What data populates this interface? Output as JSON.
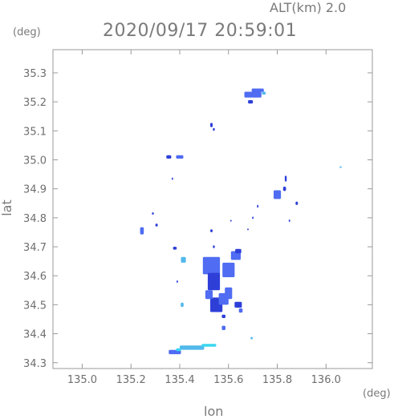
{
  "header": {
    "altitude_label": "ALT(km)  2.0",
    "timestamp": "2020/09/17 20:59:01"
  },
  "chart_data": {
    "type": "heatmap",
    "title": "2020/09/17 20:59:01",
    "xlabel": "lon",
    "ylabel": "lat",
    "x_unit": "(deg)",
    "y_unit": "(deg)",
    "xlim": [
      134.88,
      136.19
    ],
    "ylim": [
      34.28,
      35.38
    ],
    "x_ticks": [
      135.0,
      135.2,
      135.4,
      135.6,
      135.8,
      136.0
    ],
    "x_tick_labels": [
      "135.0",
      "135.2",
      "135.4",
      "135.6",
      "135.8",
      "136.0"
    ],
    "y_ticks": [
      34.3,
      34.4,
      34.5,
      34.6,
      34.7,
      34.8,
      34.9,
      35.0,
      35.1,
      35.2,
      35.3
    ],
    "y_tick_labels": [
      "34.3",
      "34.4",
      "34.5",
      "34.6",
      "34.7",
      "34.8",
      "34.9",
      "35.0",
      "35.1",
      "35.2",
      "35.3"
    ],
    "grid": false,
    "colors": {
      "strong": "#2e3fd8",
      "medium": "#4f6cf2",
      "light": "#52b8ec",
      "cyan": "#39d7ee"
    },
    "cells": [
      {
        "lon": 135.7,
        "lat": 35.225,
        "w": 0.07,
        "h": 0.02,
        "level": "medium"
      },
      {
        "lon": 135.72,
        "lat": 35.24,
        "w": 0.05,
        "h": 0.012,
        "level": "medium"
      },
      {
        "lon": 135.69,
        "lat": 35.2,
        "w": 0.02,
        "h": 0.012,
        "level": "strong"
      },
      {
        "lon": 135.745,
        "lat": 35.23,
        "w": 0.015,
        "h": 0.01,
        "level": "light"
      },
      {
        "lon": 135.53,
        "lat": 35.12,
        "w": 0.01,
        "h": 0.015,
        "level": "strong"
      },
      {
        "lon": 135.54,
        "lat": 35.105,
        "w": 0.008,
        "h": 0.01,
        "level": "strong"
      },
      {
        "lon": 135.355,
        "lat": 35.01,
        "w": 0.02,
        "h": 0.012,
        "level": "strong"
      },
      {
        "lon": 135.4,
        "lat": 35.01,
        "w": 0.03,
        "h": 0.012,
        "level": "medium"
      },
      {
        "lon": 135.37,
        "lat": 34.935,
        "w": 0.006,
        "h": 0.008,
        "level": "strong"
      },
      {
        "lon": 136.06,
        "lat": 34.975,
        "w": 0.008,
        "h": 0.006,
        "level": "light"
      },
      {
        "lon": 135.835,
        "lat": 34.935,
        "w": 0.008,
        "h": 0.02,
        "level": "strong"
      },
      {
        "lon": 135.8,
        "lat": 34.88,
        "w": 0.03,
        "h": 0.03,
        "level": "medium"
      },
      {
        "lon": 135.83,
        "lat": 34.9,
        "w": 0.012,
        "h": 0.015,
        "level": "strong"
      },
      {
        "lon": 135.88,
        "lat": 34.85,
        "w": 0.01,
        "h": 0.012,
        "level": "strong"
      },
      {
        "lon": 135.72,
        "lat": 34.84,
        "w": 0.006,
        "h": 0.01,
        "level": "strong"
      },
      {
        "lon": 135.7,
        "lat": 34.8,
        "w": 0.006,
        "h": 0.008,
        "level": "strong"
      },
      {
        "lon": 135.85,
        "lat": 34.79,
        "w": 0.006,
        "h": 0.008,
        "level": "strong"
      },
      {
        "lon": 135.61,
        "lat": 34.79,
        "w": 0.006,
        "h": 0.006,
        "level": "strong"
      },
      {
        "lon": 135.68,
        "lat": 34.76,
        "w": 0.006,
        "h": 0.006,
        "level": "strong"
      },
      {
        "lon": 135.245,
        "lat": 34.755,
        "w": 0.015,
        "h": 0.025,
        "level": "medium"
      },
      {
        "lon": 135.305,
        "lat": 34.775,
        "w": 0.01,
        "h": 0.01,
        "level": "strong"
      },
      {
        "lon": 135.29,
        "lat": 34.815,
        "w": 0.008,
        "h": 0.008,
        "level": "strong"
      },
      {
        "lon": 135.53,
        "lat": 34.755,
        "w": 0.01,
        "h": 0.01,
        "level": "strong"
      },
      {
        "lon": 135.54,
        "lat": 34.7,
        "w": 0.008,
        "h": 0.01,
        "level": "strong"
      },
      {
        "lon": 135.38,
        "lat": 34.695,
        "w": 0.015,
        "h": 0.01,
        "level": "strong"
      },
      {
        "lon": 135.415,
        "lat": 34.655,
        "w": 0.02,
        "h": 0.02,
        "level": "light"
      },
      {
        "lon": 135.53,
        "lat": 34.635,
        "w": 0.07,
        "h": 0.06,
        "level": "medium"
      },
      {
        "lon": 135.54,
        "lat": 34.58,
        "w": 0.05,
        "h": 0.06,
        "level": "strong"
      },
      {
        "lon": 135.6,
        "lat": 34.62,
        "w": 0.05,
        "h": 0.05,
        "level": "medium"
      },
      {
        "lon": 135.63,
        "lat": 34.67,
        "w": 0.04,
        "h": 0.03,
        "level": "medium"
      },
      {
        "lon": 135.64,
        "lat": 34.685,
        "w": 0.025,
        "h": 0.015,
        "level": "strong"
      },
      {
        "lon": 135.6,
        "lat": 34.54,
        "w": 0.03,
        "h": 0.04,
        "level": "medium"
      },
      {
        "lon": 135.55,
        "lat": 34.5,
        "w": 0.05,
        "h": 0.05,
        "level": "strong"
      },
      {
        "lon": 135.58,
        "lat": 34.52,
        "w": 0.04,
        "h": 0.04,
        "level": "medium"
      },
      {
        "lon": 135.52,
        "lat": 34.535,
        "w": 0.03,
        "h": 0.03,
        "level": "medium"
      },
      {
        "lon": 135.64,
        "lat": 34.5,
        "w": 0.03,
        "h": 0.02,
        "level": "strong"
      },
      {
        "lon": 135.65,
        "lat": 34.48,
        "w": 0.015,
        "h": 0.015,
        "level": "medium"
      },
      {
        "lon": 135.41,
        "lat": 34.5,
        "w": 0.012,
        "h": 0.015,
        "level": "light"
      },
      {
        "lon": 135.39,
        "lat": 34.58,
        "w": 0.006,
        "h": 0.008,
        "level": "strong"
      },
      {
        "lon": 135.58,
        "lat": 34.46,
        "w": 0.015,
        "h": 0.012,
        "level": "strong"
      },
      {
        "lon": 135.58,
        "lat": 34.42,
        "w": 0.015,
        "h": 0.015,
        "level": "medium"
      },
      {
        "lon": 135.695,
        "lat": 34.385,
        "w": 0.01,
        "h": 0.008,
        "level": "light"
      },
      {
        "lon": 135.38,
        "lat": 34.337,
        "w": 0.05,
        "h": 0.015,
        "level": "medium"
      },
      {
        "lon": 135.45,
        "lat": 34.352,
        "w": 0.1,
        "h": 0.015,
        "level": "light"
      },
      {
        "lon": 135.52,
        "lat": 34.36,
        "w": 0.06,
        "h": 0.01,
        "level": "cyan"
      },
      {
        "lon": 135.395,
        "lat": 34.345,
        "w": 0.02,
        "h": 0.01,
        "level": "cyan"
      }
    ]
  }
}
